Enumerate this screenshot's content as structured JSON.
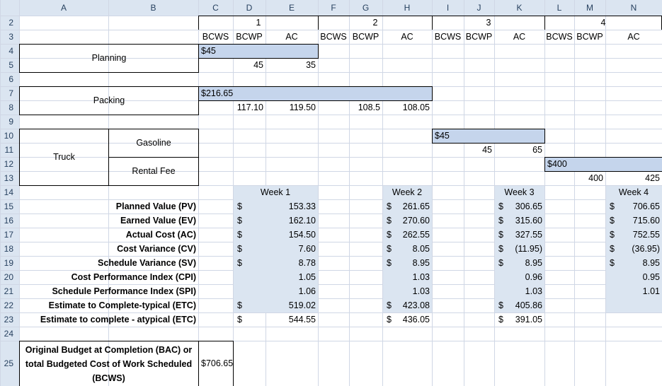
{
  "columns": [
    "A",
    "B",
    "C",
    "D",
    "E",
    "F",
    "G",
    "H",
    "I",
    "J",
    "K",
    "L",
    "M",
    "N"
  ],
  "rows": [
    "2",
    "3",
    "4",
    "5",
    "6",
    "7",
    "8",
    "9",
    "10",
    "11",
    "12",
    "13",
    "14",
    "15",
    "16",
    "17",
    "18",
    "19",
    "20",
    "21",
    "22",
    "23",
    "24",
    "25"
  ],
  "weeks_header": [
    "1",
    "2",
    "3",
    "4"
  ],
  "subheaders": [
    "BCWS",
    "BCWP",
    "AC",
    "BCWS",
    "BCWP",
    "AC",
    "BCWS",
    "BCWP",
    "AC",
    "BCWS",
    "BCWP",
    "AC"
  ],
  "tasks": {
    "planning": "Planning",
    "packing": "Packing",
    "truck": "Truck",
    "gasoline": "Gasoline",
    "rental_fee": "Rental Fee"
  },
  "bars": {
    "planning": "$45",
    "packing": "$216.65",
    "gasoline": "$45",
    "rental": "$400"
  },
  "actuals": {
    "planning_bcwp": "45",
    "planning_ac": "35",
    "packing_bcwp1": "117.10",
    "packing_ac1": "119.50",
    "packing_bcwp2": "108.5",
    "packing_ac2": "108.05",
    "gasoline_bcwp": "45",
    "gasoline_ac": "65",
    "rental_bcwp": "400",
    "rental_ac": "425"
  },
  "week_labels": [
    "Week 1",
    "Week 2",
    "Week 3",
    "Week 4"
  ],
  "metrics": [
    {
      "label": "Planned Value (PV)",
      "w1": "153.33",
      "w2": "261.65",
      "w3": "306.65",
      "w4": "706.65",
      "dollar": true
    },
    {
      "label": "Earned Value (EV)",
      "w1": "162.10",
      "w2": "270.60",
      "w3": "315.60",
      "w4": "715.60",
      "dollar": true
    },
    {
      "label": "Actual Cost (AC)",
      "w1": "154.50",
      "w2": "262.55",
      "w3": "327.55",
      "w4": "752.55",
      "dollar": true
    },
    {
      "label": "Cost Variance (CV)",
      "w1": "7.60",
      "w2": "8.05",
      "w3": "(11.95)",
      "w4": "(36.95)",
      "dollar": true
    },
    {
      "label": "Schedule Variance (SV)",
      "w1": "8.78",
      "w2": "8.95",
      "w3": "8.95",
      "w4": "8.95",
      "dollar": true
    },
    {
      "label": "Cost Performance Index (CPI)",
      "w1": "1.05",
      "w2": "1.03",
      "w3": "0.96",
      "w4": "0.95",
      "dollar": false
    },
    {
      "label": "Schedule Performance Index (SPI)",
      "w1": "1.06",
      "w2": "1.03",
      "w3": "1.03",
      "w4": "1.01",
      "dollar": false
    },
    {
      "label": "Estimate to Complete-typical (ETC)",
      "w1": "519.02",
      "w2": "423.08",
      "w3": "405.86",
      "w4": "",
      "dollar": true
    },
    {
      "label": "Estimate to complete - atypical (ETC)",
      "w1": "544.55",
      "w2": "436.05",
      "w3": "391.05",
      "w4": "",
      "dollar": true
    }
  ],
  "dollar_sign": "$",
  "bac": {
    "label_line1": "Original Budget at Completion (BAC) or",
    "label_line2": "total Budgeted Cost of Work Scheduled",
    "label_line3": "(BCWS)",
    "value": "$706.65"
  }
}
